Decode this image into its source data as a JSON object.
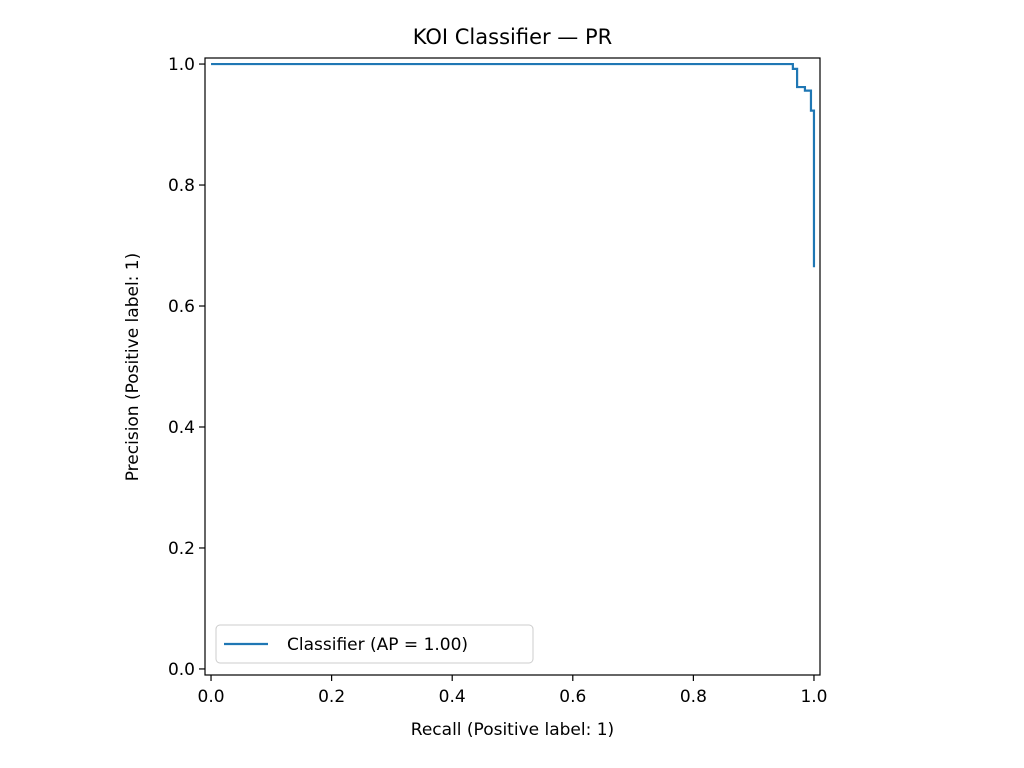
{
  "chart_data": {
    "type": "line",
    "title": "KOI Classifier — PR",
    "xlabel": "Recall (Positive label: 1)",
    "ylabel": "Precision (Positive label: 1)",
    "xlim": [
      -0.01,
      1.01
    ],
    "ylim": [
      -0.01,
      1.01
    ],
    "xticks": [
      0.0,
      0.2,
      0.4,
      0.6,
      0.8,
      1.0
    ],
    "xtick_labels": [
      "0.0",
      "0.2",
      "0.4",
      "0.6",
      "0.8",
      "1.0"
    ],
    "yticks": [
      0.0,
      0.2,
      0.4,
      0.6,
      0.8,
      1.0
    ],
    "ytick_labels": [
      "0.0",
      "0.2",
      "0.4",
      "0.6",
      "0.8",
      "1.0"
    ],
    "grid": false,
    "legend": "lower-left",
    "color": "#1f77b4",
    "series": [
      {
        "name": "Classifier (AP = 1.00)",
        "step": "post",
        "x": [
          0.0,
          0.965,
          0.965,
          0.972,
          0.972,
          0.985,
          0.985,
          0.995,
          0.995,
          1.0,
          1.0
        ],
        "y": [
          1.0,
          1.0,
          0.992,
          0.992,
          0.962,
          0.962,
          0.956,
          0.956,
          0.923,
          0.923,
          0.664
        ]
      }
    ]
  }
}
